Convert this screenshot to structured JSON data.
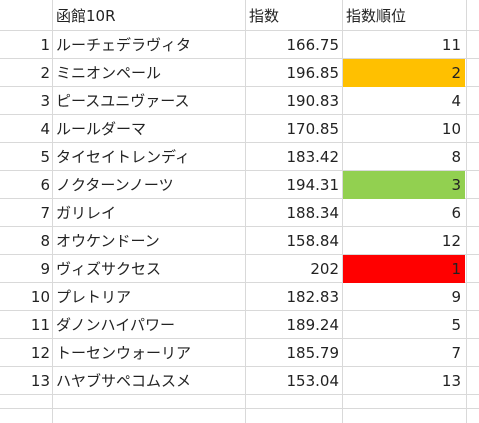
{
  "header": {
    "race": "函館10R",
    "index_label": "指数",
    "rank_label": "指数順位"
  },
  "rows": [
    {
      "no": "1",
      "horse": "ルーチェデラヴィタ",
      "index": "166.75",
      "rank": "11",
      "highlight": ""
    },
    {
      "no": "2",
      "horse": "ミニオンペール",
      "index": "196.85",
      "rank": "2",
      "highlight": "orange"
    },
    {
      "no": "3",
      "horse": "ピースユニヴァース",
      "index": "190.83",
      "rank": "4",
      "highlight": ""
    },
    {
      "no": "4",
      "horse": "ルールダーマ",
      "index": "170.85",
      "rank": "10",
      "highlight": ""
    },
    {
      "no": "5",
      "horse": "タイセイトレンディ",
      "index": "183.42",
      "rank": "8",
      "highlight": ""
    },
    {
      "no": "6",
      "horse": "ノクターンノーツ",
      "index": "194.31",
      "rank": "3",
      "highlight": "green"
    },
    {
      "no": "7",
      "horse": "ガリレイ",
      "index": "188.34",
      "rank": "6",
      "highlight": ""
    },
    {
      "no": "8",
      "horse": "オウケンドーン",
      "index": "158.84",
      "rank": "12",
      "highlight": ""
    },
    {
      "no": "9",
      "horse": "ヴィズサクセス",
      "index": "202",
      "rank": "1",
      "highlight": "red"
    },
    {
      "no": "10",
      "horse": "プレトリア",
      "index": "182.83",
      "rank": "9",
      "highlight": ""
    },
    {
      "no": "11",
      "horse": "ダノンハイパワー",
      "index": "189.24",
      "rank": "5",
      "highlight": ""
    },
    {
      "no": "12",
      "horse": "トーセンウォーリア",
      "index": "185.79",
      "rank": "7",
      "highlight": ""
    },
    {
      "no": "13",
      "horse": "ハヤブサペコムスメ",
      "index": "153.04",
      "rank": "13",
      "highlight": ""
    }
  ],
  "colors": {
    "orange": "#ffc000",
    "green": "#92d050",
    "red": "#ff0000",
    "gridline": "#d9d9d9"
  }
}
